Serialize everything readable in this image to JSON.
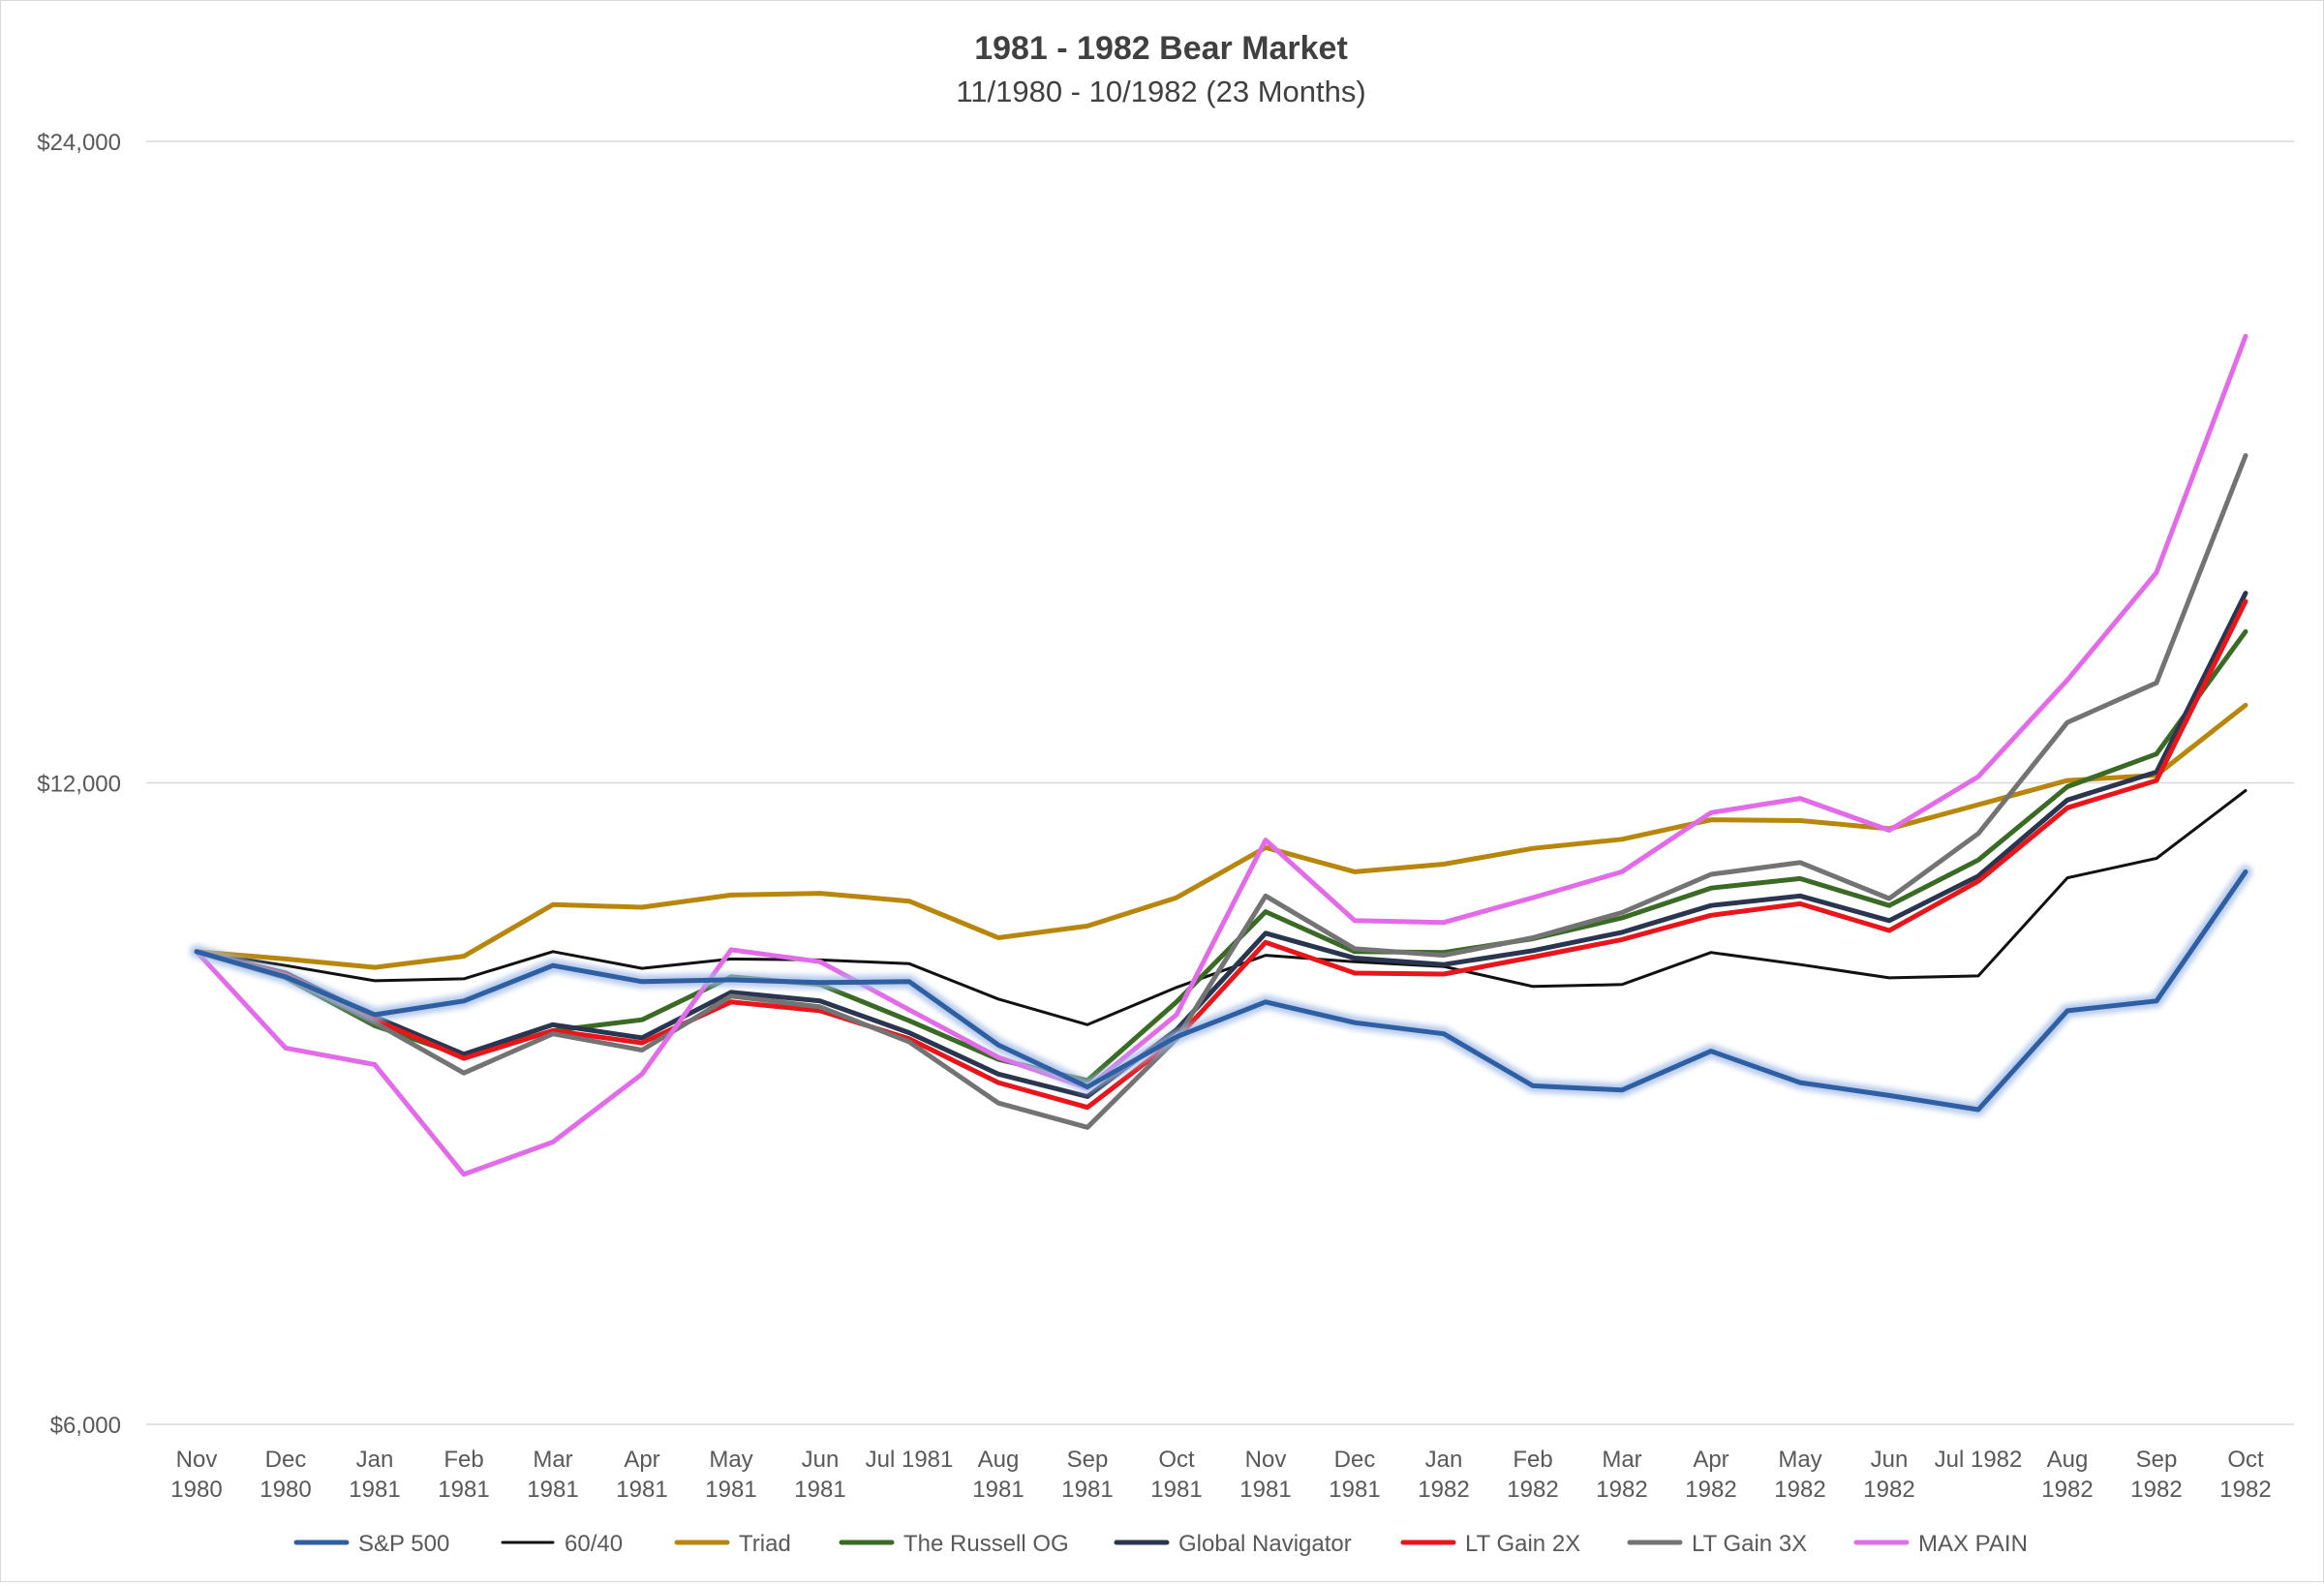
{
  "chart_data": {
    "type": "line",
    "title": "1981 - 1982 Bear Market",
    "subtitle": "11/1980 - 10/1982 (23 Months)",
    "xlabel": "",
    "ylabel": "",
    "y_scale": "log",
    "ylim": [
      6000,
      24000
    ],
    "y_ticks": [
      {
        "value": 24000,
        "label": "$24,000"
      },
      {
        "value": 12000,
        "label": "$12,000"
      },
      {
        "value": 6000,
        "label": "$6,000"
      }
    ],
    "grid": true,
    "legend": "bottom",
    "categories": [
      [
        "Nov",
        "1980"
      ],
      [
        "Dec",
        "1980"
      ],
      [
        "Jan",
        "1981"
      ],
      [
        "Feb",
        "1981"
      ],
      [
        "Mar",
        "1981"
      ],
      [
        "Apr",
        "1981"
      ],
      [
        "May",
        "1981"
      ],
      [
        "Jun",
        "1981"
      ],
      [
        "Jul 1981"
      ],
      [
        "Aug",
        "1981"
      ],
      [
        "Sep",
        "1981"
      ],
      [
        "Oct",
        "1981"
      ],
      [
        "Nov",
        "1981"
      ],
      [
        "Dec",
        "1981"
      ],
      [
        "Jan",
        "1982"
      ],
      [
        "Feb",
        "1982"
      ],
      [
        "Mar",
        "1982"
      ],
      [
        "Apr",
        "1982"
      ],
      [
        "May",
        "1982"
      ],
      [
        "Jun",
        "1982"
      ],
      [
        "Jul 1982"
      ],
      [
        "Aug",
        "1982"
      ],
      [
        "Sep",
        "1982"
      ],
      [
        "Oct",
        "1982"
      ]
    ],
    "series": [
      {
        "name": "S&P 500",
        "color": "#2e5fa3",
        "glow": true,
        "values": [
          10000,
          9730,
          9340,
          9480,
          9850,
          9680,
          9700,
          9670,
          9680,
          9040,
          8640,
          9120,
          9470,
          9260,
          9150,
          8650,
          8610,
          8980,
          8680,
          8560,
          8430,
          9380,
          9480,
          10900
        ]
      },
      {
        "name": "60/40",
        "color": "#111111",
        "glow": false,
        "values": [
          10000,
          9850,
          9690,
          9710,
          10000,
          9820,
          9920,
          9910,
          9870,
          9500,
          9240,
          9620,
          9960,
          9890,
          9840,
          9630,
          9650,
          9990,
          9860,
          9720,
          9740,
          10830,
          11060,
          11900
        ]
      },
      {
        "name": "Triad",
        "color": "#b8860b",
        "glow": false,
        "values": [
          10000,
          9920,
          9830,
          9950,
          10520,
          10490,
          10630,
          10650,
          10560,
          10150,
          10280,
          10600,
          11190,
          10900,
          10990,
          11180,
          11290,
          11530,
          11520,
          11420,
          11720,
          12030,
          12100,
          13050
        ]
      },
      {
        "name": "The Russell OG",
        "color": "#3a6b24",
        "glow": false,
        "values": [
          10000,
          9720,
          9230,
          8930,
          9180,
          9290,
          9730,
          9650,
          9280,
          8900,
          8700,
          9470,
          10440,
          10000,
          9990,
          10140,
          10370,
          10710,
          10820,
          10510,
          11040,
          11950,
          12380,
          14130
        ]
      },
      {
        "name": "Global Navigator",
        "color": "#2a3550",
        "glow": false,
        "values": [
          10000,
          9770,
          9320,
          8950,
          9240,
          9110,
          9570,
          9480,
          9160,
          8760,
          8550,
          9190,
          10200,
          9930,
          9860,
          10010,
          10210,
          10510,
          10620,
          10340,
          10850,
          11780,
          12140,
          14730
        ]
      },
      {
        "name": "LT Gain 2X",
        "color": "#e8151b",
        "glow": false,
        "values": [
          10000,
          9760,
          9290,
          8910,
          9180,
          9060,
          9470,
          9380,
          9100,
          8680,
          8450,
          9100,
          10100,
          9770,
          9760,
          9940,
          10130,
          10400,
          10530,
          10230,
          10790,
          11680,
          12030,
          14600
        ]
      },
      {
        "name": "LT Gain 3X",
        "color": "#737373",
        "glow": false,
        "values": [
          10000,
          9740,
          9260,
          8770,
          9150,
          8990,
          9530,
          9420,
          9070,
          8490,
          8270,
          9100,
          10620,
          10030,
          9960,
          10150,
          10430,
          10870,
          11010,
          10590,
          11360,
          12810,
          13370,
          17090
        ]
      },
      {
        "name": "MAX PAIN",
        "color": "#e36be9",
        "glow": false,
        "values": [
          10000,
          9010,
          8850,
          7860,
          8140,
          8760,
          10020,
          9890,
          9390,
          8920,
          8630,
          9340,
          11280,
          10340,
          10320,
          10600,
          10900,
          11620,
          11800,
          11400,
          12080,
          13410,
          15060,
          19440
        ]
      }
    ]
  }
}
